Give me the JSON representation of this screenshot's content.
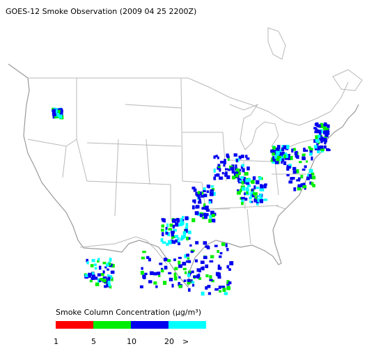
{
  "title": "GOES-12 Smoke Observation (2009 04 25  2200Z)",
  "legend": {
    "title": "Smoke Column Concentration (μg/m³)",
    "colors": [
      "#ff0000",
      "#00ee00",
      "#0000ee",
      "#00ffff"
    ],
    "labels": [
      "1",
      "5",
      "10",
      "20",
      ">"
    ]
  }
}
